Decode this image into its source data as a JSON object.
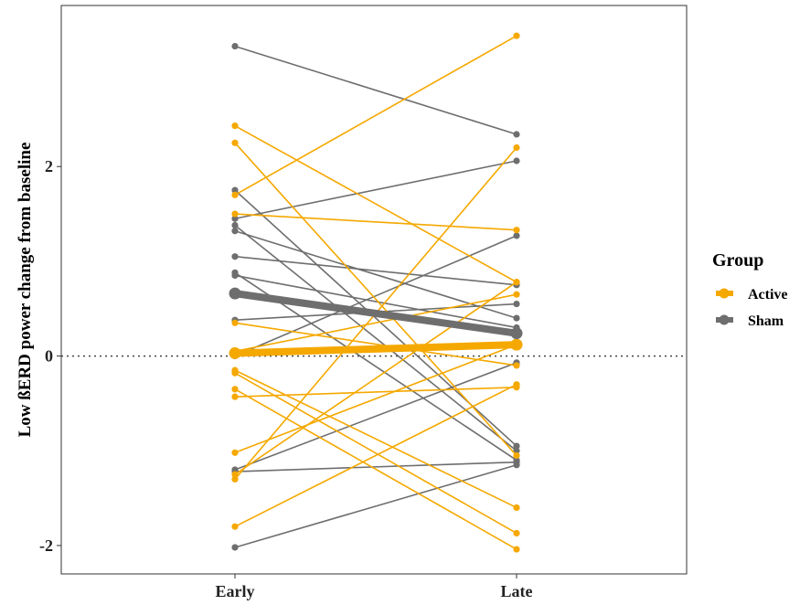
{
  "chart_data": {
    "type": "line",
    "title": "",
    "xlabel": "",
    "ylabel": "Low ßERD power change from baseline",
    "categories": [
      "Early",
      "Late"
    ],
    "y_ticks": [
      -2,
      0,
      2
    ],
    "y_tick_labels": [
      "-2",
      "0",
      "2"
    ],
    "ylim": [
      -2.3,
      3.7
    ],
    "reference_line": {
      "y": 0,
      "style": "dotted"
    },
    "grid": false,
    "legend": {
      "title": "Group",
      "placement": "right",
      "entries": [
        {
          "label": "Active",
          "color": "#F5A800"
        },
        {
          "label": "Sham",
          "color": "#6E6E6E"
        }
      ]
    },
    "groups": [
      {
        "name": "Active",
        "color": "#F5A800",
        "mean": [
          0.03,
          0.12
        ],
        "subjects": [
          [
            2.43,
            0.78
          ],
          [
            2.25,
            -1.05
          ],
          [
            1.7,
            3.38
          ],
          [
            1.5,
            1.33
          ],
          [
            0.35,
            -0.1
          ],
          [
            0.05,
            0.65
          ],
          [
            -0.15,
            -1.6
          ],
          [
            -0.18,
            -1.87
          ],
          [
            -0.35,
            -2.04
          ],
          [
            -0.43,
            -0.33
          ],
          [
            -1.02,
            0.12
          ],
          [
            -1.25,
            0.78
          ],
          [
            -1.3,
            2.2
          ],
          [
            -1.8,
            -0.3
          ]
        ]
      },
      {
        "name": "Sham",
        "color": "#6E6E6E",
        "mean": [
          0.66,
          0.24
        ],
        "subjects": [
          [
            3.27,
            2.34
          ],
          [
            1.75,
            -0.95
          ],
          [
            1.45,
            2.06
          ],
          [
            1.38,
            -1.0
          ],
          [
            1.32,
            0.4
          ],
          [
            1.05,
            0.75
          ],
          [
            0.88,
            -1.1
          ],
          [
            0.85,
            0.3
          ],
          [
            0.38,
            0.55
          ],
          [
            0.0,
            1.27
          ],
          [
            -1.2,
            -0.07
          ],
          [
            -1.22,
            -1.12
          ],
          [
            -2.02,
            -1.15
          ]
        ]
      }
    ]
  }
}
